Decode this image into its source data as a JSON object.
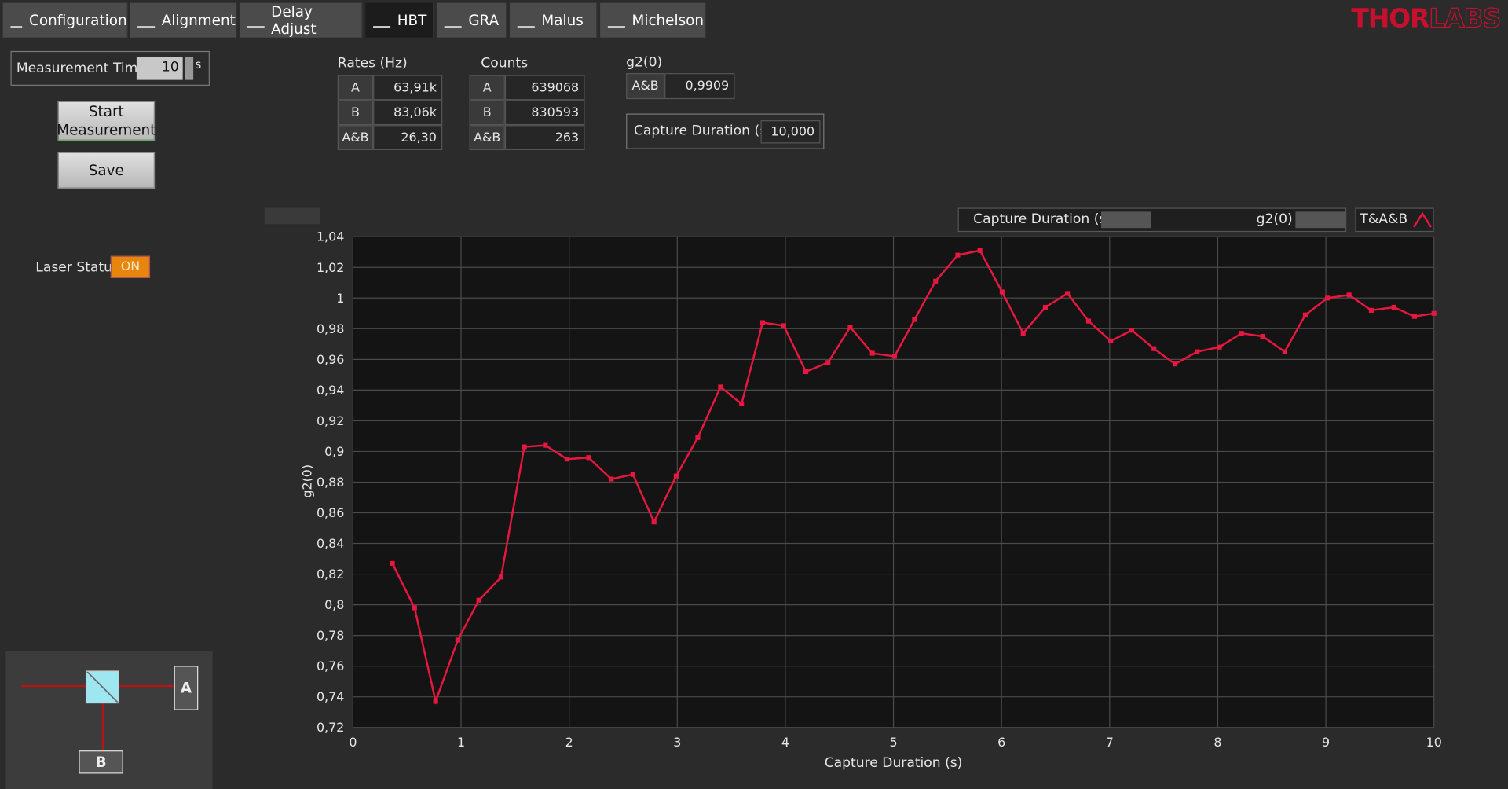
{
  "tabs": [
    "Configuration",
    "Alignment",
    "Delay Adjust",
    "HBT",
    "GRA",
    "Malus",
    "Michelson"
  ],
  "logo": [
    "THOR",
    "LABS"
  ],
  "measurement_time": {
    "label": "Measurement Time",
    "value": 10,
    "unit": "s"
  },
  "buttons": [
    "Start Measurement",
    "Save"
  ],
  "laser_status": {
    "label": "Laser Status",
    "state": "ON"
  },
  "rates": {
    "title": "Rates (Hz)",
    "rows": [
      [
        "A",
        "63,91k"
      ],
      [
        "B",
        "83,06k"
      ],
      [
        "A&B",
        "26,30"
      ]
    ]
  },
  "counts": {
    "title": "Counts",
    "rows": [
      [
        "A",
        639068
      ],
      [
        "B",
        830593
      ],
      [
        "A&B",
        263
      ]
    ]
  },
  "g2": {
    "title": "g2(0)",
    "label": "A&B",
    "value": "0,9909"
  },
  "capture_duration": {
    "label": "Capture Duration (s)",
    "value": "10,000"
  },
  "diagram": {
    "detectors": [
      "A",
      "B"
    ]
  },
  "chart_data": {
    "type": "line",
    "x_label": "Capture Duration (s)",
    "y_label": "g2(0)",
    "x": [
      0.365,
      0.57,
      0.765,
      0.97,
      1.165,
      1.37,
      1.585,
      1.78,
      1.98,
      2.18,
      2.39,
      2.59,
      2.785,
      2.99,
      3.19,
      3.4,
      3.595,
      3.79,
      3.985,
      4.19,
      4.395,
      4.6,
      4.805,
      5.01,
      5.195,
      5.39,
      5.595,
      5.8,
      6.005,
      6.2,
      6.405,
      6.61,
      6.805,
      7.01,
      7.205,
      7.41,
      7.605,
      7.81,
      8.015,
      8.22,
      8.415,
      8.62,
      8.81,
      9.015,
      9.215,
      9.42,
      9.63,
      9.82,
      10
    ],
    "series": [
      {
        "name": "T&A&B",
        "color": "#e8173f",
        "values": [
          0.827,
          0.798,
          0.737,
          0.777,
          0.803,
          0.818,
          0.903,
          0.904,
          0.895,
          0.896,
          0.882,
          0.885,
          0.854,
          0.884,
          0.909,
          0.942,
          0.931,
          0.984,
          0.982,
          0.952,
          0.958,
          0.981,
          0.964,
          0.962,
          0.986,
          1.011,
          1.028,
          1.031,
          1.004,
          0.977,
          0.994,
          1.003,
          0.985,
          0.972,
          0.979,
          0.967,
          0.957,
          0.965,
          0.968,
          0.977,
          0.975,
          0.965,
          0.989,
          1.0,
          1.002,
          0.992,
          0.994,
          0.988,
          0.99
        ]
      }
    ],
    "xlim": [
      0,
      10
    ],
    "xticks": [
      0,
      1,
      2,
      3,
      4,
      5,
      6,
      7,
      8,
      9,
      10
    ],
    "ylim": [
      0.72,
      1.04
    ],
    "yticks": [
      {
        "value": 0.72,
        "label": "0,72"
      },
      {
        "value": 0.74,
        "label": "0,74"
      },
      {
        "value": 0.76,
        "label": "0,76"
      },
      {
        "value": 0.78,
        "label": "0,78"
      },
      {
        "value": 0.8,
        "label": "0,8"
      },
      {
        "value": 0.82,
        "label": "0,82"
      },
      {
        "value": 0.84,
        "label": "0,84"
      },
      {
        "value": 0.86,
        "label": "0,86"
      },
      {
        "value": 0.88,
        "label": "0,88"
      },
      {
        "value": 0.9,
        "label": "0,9"
      },
      {
        "value": 0.92,
        "label": "0,92"
      },
      {
        "value": 0.94,
        "label": "0,94"
      },
      {
        "value": 0.96,
        "label": "0,96"
      },
      {
        "value": 0.98,
        "label": "0,98"
      },
      1,
      {
        "value": 1.02,
        "label": "1,02"
      },
      {
        "value": 1.04,
        "label": "1,04"
      }
    ],
    "grid": true
  }
}
